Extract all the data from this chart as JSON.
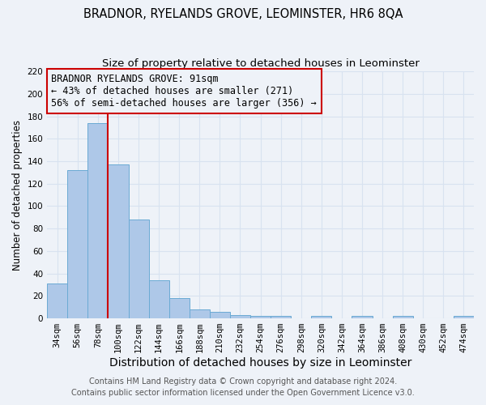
{
  "title": "BRADNOR, RYELANDS GROVE, LEOMINSTER, HR6 8QA",
  "subtitle": "Size of property relative to detached houses in Leominster",
  "xlabel": "Distribution of detached houses by size in Leominster",
  "ylabel": "Number of detached properties",
  "bin_labels": [
    "34sqm",
    "56sqm",
    "78sqm",
    "100sqm",
    "122sqm",
    "144sqm",
    "166sqm",
    "188sqm",
    "210sqm",
    "232sqm",
    "254sqm",
    "276sqm",
    "298sqm",
    "320sqm",
    "342sqm",
    "364sqm",
    "386sqm",
    "408sqm",
    "430sqm",
    "452sqm",
    "474sqm"
  ],
  "bar_heights": [
    31,
    132,
    174,
    137,
    88,
    34,
    18,
    8,
    6,
    3,
    2,
    2,
    0,
    2,
    0,
    2,
    0,
    2,
    0,
    0,
    2
  ],
  "bar_color": "#aec8e8",
  "bar_edgecolor": "#6aaad4",
  "vline_x": 2.5,
  "vline_color": "#cc0000",
  "annotation_line1": "BRADNOR RYELANDS GROVE: 91sqm",
  "annotation_line2": "← 43% of detached houses are smaller (271)",
  "annotation_line3": "56% of semi-detached houses are larger (356) →",
  "annotation_box_edgecolor": "#cc0000",
  "ylim": [
    0,
    220
  ],
  "yticks": [
    0,
    20,
    40,
    60,
    80,
    100,
    120,
    140,
    160,
    180,
    200,
    220
  ],
  "footer1": "Contains HM Land Registry data © Crown copyright and database right 2024.",
  "footer2": "Contains public sector information licensed under the Open Government Licence v3.0.",
  "bg_color": "#eef2f8",
  "grid_color": "#d8e2f0",
  "title_fontsize": 10.5,
  "subtitle_fontsize": 9.5,
  "xlabel_fontsize": 10,
  "ylabel_fontsize": 8.5,
  "tick_fontsize": 7.5,
  "annot_fontsize": 8.5,
  "footer_fontsize": 7
}
